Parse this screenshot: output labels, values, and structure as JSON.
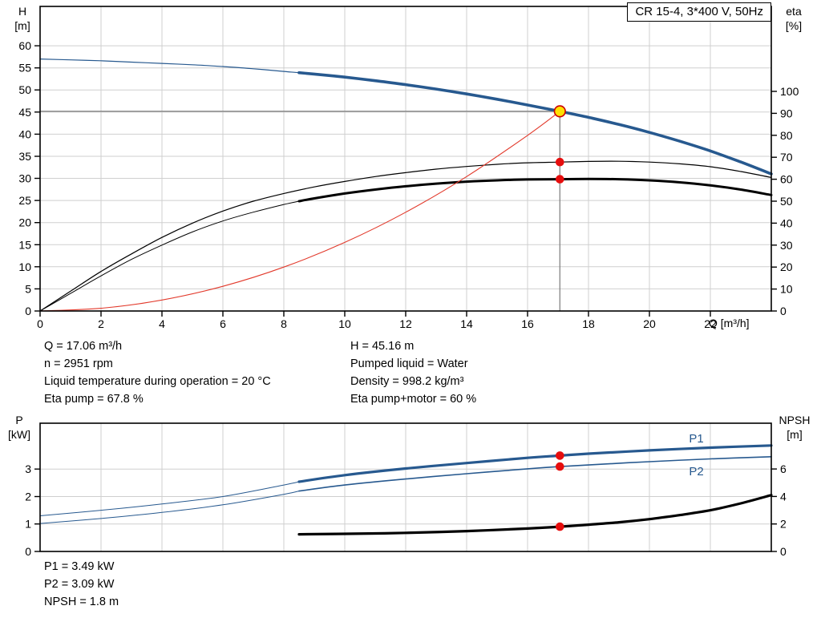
{
  "title_box": {
    "label": "CR 15-4, 3*400 V, 50Hz"
  },
  "colors": {
    "blue": "#27598f",
    "black": "#000000",
    "red_curve": "#e2392b",
    "red_dot": "#e60d0d",
    "duty_fill": "#ffe000",
    "duty_ring": "#cc0000",
    "grid": "#cfcfcf",
    "guide": "#7a7a7a",
    "frame": "#000000",
    "label_blue": "#27598f"
  },
  "chart_data": [
    {
      "id": "qh-eta",
      "type": "line",
      "x_axis": {
        "label": "Q [m³/h]",
        "min": 0,
        "max": 24,
        "ticks": [
          0,
          2,
          4,
          6,
          8,
          10,
          12,
          14,
          16,
          18,
          20,
          22
        ],
        "show_tick_labels": true
      },
      "y_left": {
        "name": "H",
        "unit": "[m]",
        "min": 0,
        "max": 68.9,
        "ticks": [
          0,
          5,
          10,
          15,
          20,
          25,
          30,
          35,
          40,
          45,
          50,
          55,
          60
        ]
      },
      "y_right": {
        "name": "eta",
        "unit": "[%]",
        "min": 0,
        "max": 138.7,
        "ticks": [
          0,
          10,
          20,
          30,
          40,
          50,
          60,
          70,
          80,
          90,
          100
        ]
      },
      "grid": true,
      "series": [
        {
          "name": "qh-curve-low-flow",
          "axis": "left",
          "color": "blue",
          "width": 1.2,
          "points": [
            [
              0,
              57
            ],
            [
              1,
              56.8
            ],
            [
              2,
              56.6
            ],
            [
              3,
              56.3
            ],
            [
              4,
              56.0
            ],
            [
              5,
              55.7
            ],
            [
              6,
              55.3
            ],
            [
              7,
              54.8
            ],
            [
              8,
              54.2
            ],
            [
              8.5,
              53.9
            ]
          ]
        },
        {
          "name": "qh-curve",
          "axis": "left",
          "color": "blue",
          "width": 3.6,
          "points": [
            [
              8.5,
              53.9
            ],
            [
              9,
              53.6
            ],
            [
              10,
              52.9
            ],
            [
              11,
              52.1
            ],
            [
              12,
              51.2
            ],
            [
              13,
              50.2
            ],
            [
              14,
              49.1
            ],
            [
              15,
              47.9
            ],
            [
              16,
              46.6
            ],
            [
              17.06,
              45.16
            ],
            [
              18,
              43.8
            ],
            [
              19,
              42.2
            ],
            [
              20,
              40.4
            ],
            [
              21,
              38.4
            ],
            [
              22,
              36.2
            ],
            [
              23,
              33.7
            ],
            [
              24,
              31.0
            ]
          ]
        },
        {
          "name": "eta-pump-curve",
          "axis": "right",
          "color": "black",
          "width": 1.2,
          "points": [
            [
              0,
              0
            ],
            [
              1,
              9
            ],
            [
              2,
              18
            ],
            [
              3,
              26
            ],
            [
              4,
              33.5
            ],
            [
              5,
              40
            ],
            [
              6,
              45.5
            ],
            [
              7,
              50
            ],
            [
              8,
              53.5
            ],
            [
              9,
              56.5
            ],
            [
              10,
              59
            ],
            [
              11,
              61.2
            ],
            [
              12,
              63
            ],
            [
              13,
              64.6
            ],
            [
              14,
              65.8
            ],
            [
              15,
              66.8
            ],
            [
              16,
              67.5
            ],
            [
              17.06,
              67.8
            ],
            [
              18,
              68.1
            ],
            [
              19,
              68.2
            ],
            [
              20,
              67.8
            ],
            [
              21,
              67.0
            ],
            [
              22,
              65.7
            ],
            [
              23,
              63.5
            ],
            [
              24,
              60.8
            ]
          ]
        },
        {
          "name": "eta-pump-motor-curve-low-flow",
          "axis": "right",
          "color": "black",
          "width": 1,
          "points": [
            [
              0,
              0
            ],
            [
              1,
              8
            ],
            [
              2,
              16
            ],
            [
              3,
              23.5
            ],
            [
              4,
              30
            ],
            [
              5,
              36
            ],
            [
              6,
              41
            ],
            [
              7,
              45
            ],
            [
              8,
              48.5
            ],
            [
              8.5,
              50
            ]
          ]
        },
        {
          "name": "eta-pump-motor-curve",
          "axis": "right",
          "color": "black",
          "width": 3,
          "points": [
            [
              8.5,
              50
            ],
            [
              9,
              51.3
            ],
            [
              10,
              53.5
            ],
            [
              11,
              55.3
            ],
            [
              12,
              56.8
            ],
            [
              13,
              58
            ],
            [
              14,
              58.9
            ],
            [
              15,
              59.5
            ],
            [
              16,
              59.9
            ],
            [
              17.06,
              60
            ],
            [
              18,
              60.1
            ],
            [
              19,
              60
            ],
            [
              20,
              59.5
            ],
            [
              21,
              58.6
            ],
            [
              22,
              57.2
            ],
            [
              23,
              55.3
            ],
            [
              24,
              52.8
            ]
          ]
        },
        {
          "name": "system-curve",
          "axis": "left",
          "color": "red_curve",
          "width": 1.1,
          "points": [
            [
              0,
              0
            ],
            [
              2,
              0.62
            ],
            [
              4,
              2.48
            ],
            [
              6,
              5.59
            ],
            [
              8,
              9.93
            ],
            [
              10,
              15.52
            ],
            [
              12,
              22.34
            ],
            [
              14,
              30.41
            ],
            [
              16,
              39.72
            ],
            [
              17.06,
              45.16
            ]
          ]
        }
      ],
      "duty_point": {
        "q": 17.06,
        "h": 45.16
      },
      "dots": [
        {
          "q": 17.06,
          "v": 67.8,
          "axis": "right"
        },
        {
          "q": 17.06,
          "v": 60,
          "axis": "right"
        }
      ]
    },
    {
      "id": "power-npsh",
      "type": "line",
      "x_axis": {
        "label": "",
        "min": 0,
        "max": 24,
        "ticks": [
          0,
          2,
          4,
          6,
          8,
          10,
          12,
          14,
          16,
          18,
          20,
          22
        ],
        "show_tick_labels": false
      },
      "y_left": {
        "name": "P",
        "unit": "[kW]",
        "min": 0,
        "max": 4.67,
        "ticks": [
          0,
          1,
          2,
          3
        ]
      },
      "y_right": {
        "name": "NPSH",
        "unit": "[m]",
        "min": 0,
        "max": 9.33,
        "ticks": [
          0,
          2,
          4,
          6
        ]
      },
      "grid": true,
      "series": [
        {
          "name": "p1-curve-low-flow",
          "axis": "left",
          "color": "blue",
          "width": 1,
          "points": [
            [
              0,
              1.3
            ],
            [
              2,
              1.5
            ],
            [
              4,
              1.73
            ],
            [
              6,
              2.0
            ],
            [
              8,
              2.42
            ],
            [
              8.5,
              2.54
            ]
          ]
        },
        {
          "name": "p1-curve",
          "axis": "left",
          "color": "blue",
          "width": 3.2,
          "points": [
            [
              8.5,
              2.54
            ],
            [
              10,
              2.78
            ],
            [
              12,
              3.02
            ],
            [
              14,
              3.22
            ],
            [
              16,
              3.41
            ],
            [
              17.06,
              3.49
            ],
            [
              18,
              3.56
            ],
            [
              20,
              3.68
            ],
            [
              22,
              3.78
            ],
            [
              24,
              3.86
            ]
          ]
        },
        {
          "name": "p2-curve-low-flow",
          "axis": "left",
          "color": "blue",
          "width": 1,
          "points": [
            [
              0,
              1.02
            ],
            [
              2,
              1.2
            ],
            [
              4,
              1.42
            ],
            [
              6,
              1.7
            ],
            [
              8,
              2.08
            ],
            [
              8.5,
              2.2
            ]
          ]
        },
        {
          "name": "p2-curve",
          "axis": "left",
          "color": "blue",
          "width": 1.6,
          "points": [
            [
              8.5,
              2.2
            ],
            [
              10,
              2.42
            ],
            [
              12,
              2.64
            ],
            [
              14,
              2.83
            ],
            [
              16,
              3.01
            ],
            [
              17.06,
              3.09
            ],
            [
              18,
              3.15
            ],
            [
              20,
              3.27
            ],
            [
              22,
              3.37
            ],
            [
              24,
              3.45
            ]
          ]
        },
        {
          "name": "npsh-curve",
          "axis": "right",
          "color": "black",
          "width": 3.2,
          "points": [
            [
              8.5,
              1.25
            ],
            [
              10,
              1.28
            ],
            [
              12,
              1.35
            ],
            [
              14,
              1.48
            ],
            [
              16,
              1.67
            ],
            [
              17.06,
              1.8
            ],
            [
              18,
              1.95
            ],
            [
              19,
              2.12
            ],
            [
              20,
              2.35
            ],
            [
              21,
              2.65
            ],
            [
              22,
              3.0
            ],
            [
              23,
              3.5
            ],
            [
              24,
              4.1
            ]
          ]
        }
      ],
      "dots": [
        {
          "q": 17.06,
          "v": 3.49,
          "axis": "left"
        },
        {
          "q": 17.06,
          "v": 3.09,
          "axis": "left"
        },
        {
          "q": 17.06,
          "v": 1.8,
          "axis": "right"
        }
      ],
      "labels": [
        {
          "text": "P1",
          "q": 21.3,
          "v": 3.97,
          "axis": "left"
        },
        {
          "text": "P2",
          "q": 21.3,
          "v": 2.78,
          "axis": "left"
        }
      ]
    }
  ],
  "info_top": {
    "left": [
      "Q = 17.06 m³/h",
      "n = 2951 rpm",
      "Liquid temperature during operation = 20 °C",
      "Eta pump = 67.8 %"
    ],
    "right": [
      "H = 45.16 m",
      "Pumped liquid = Water",
      "Density = 998.2 kg/m³",
      "Eta pump+motor = 60 %"
    ]
  },
  "info_bottom": [
    "P1 = 3.49 kW",
    "P2 = 3.09 kW",
    "NPSH = 1.8 m"
  ]
}
